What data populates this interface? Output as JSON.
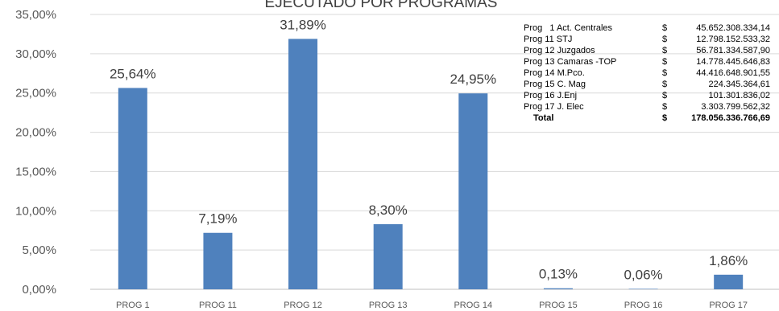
{
  "chart_data": {
    "type": "bar",
    "title": "EJECUTADO POR PROGRAMAS",
    "categories": [
      "PROG 1",
      "PROG 11",
      "PROG 12",
      "PROG 13",
      "PROG 14",
      "PROG 15",
      "PROG 16",
      "PROG 17"
    ],
    "values": [
      25.64,
      7.19,
      31.89,
      8.3,
      24.95,
      0.13,
      0.06,
      1.86
    ],
    "data_labels": [
      "25,64%",
      "7,19%",
      "31,89%",
      "8,30%",
      "24,95%",
      "0,13%",
      "0,06%",
      "1,86%"
    ],
    "y_ticks": [
      "0,00%",
      "5,00%",
      "10,00%",
      "15,00%",
      "20,00%",
      "25,00%",
      "30,00%",
      "35,00%"
    ],
    "ylim": [
      0,
      35
    ],
    "bar_color": "#4f81bd",
    "grid": true
  },
  "table": {
    "currency": "$",
    "rows": [
      {
        "name": "Prog   1 Act. Centrales",
        "amount": "45.652.308.334,14"
      },
      {
        "name": "Prog 11 STJ",
        "amount": "12.798.152.533,32"
      },
      {
        "name": "Prog 12 Juzgados",
        "amount": "56.781.334.587,90"
      },
      {
        "name": "Prog 13 Camaras -TOP",
        "amount": "14.778.445.646,83"
      },
      {
        "name": "Prog 14 M.Pco.",
        "amount": "44.416.648.901,55"
      },
      {
        "name": "Prog 15 C. Mag",
        "amount": "224.345.364,61"
      },
      {
        "name": "Prog 16 J.Enj",
        "amount": "101.301.836,02"
      },
      {
        "name": "Prog 17 J. Elec",
        "amount": "3.303.799.562,32"
      }
    ],
    "total": {
      "name": "Total",
      "amount": "178.056.336.766,69"
    }
  }
}
